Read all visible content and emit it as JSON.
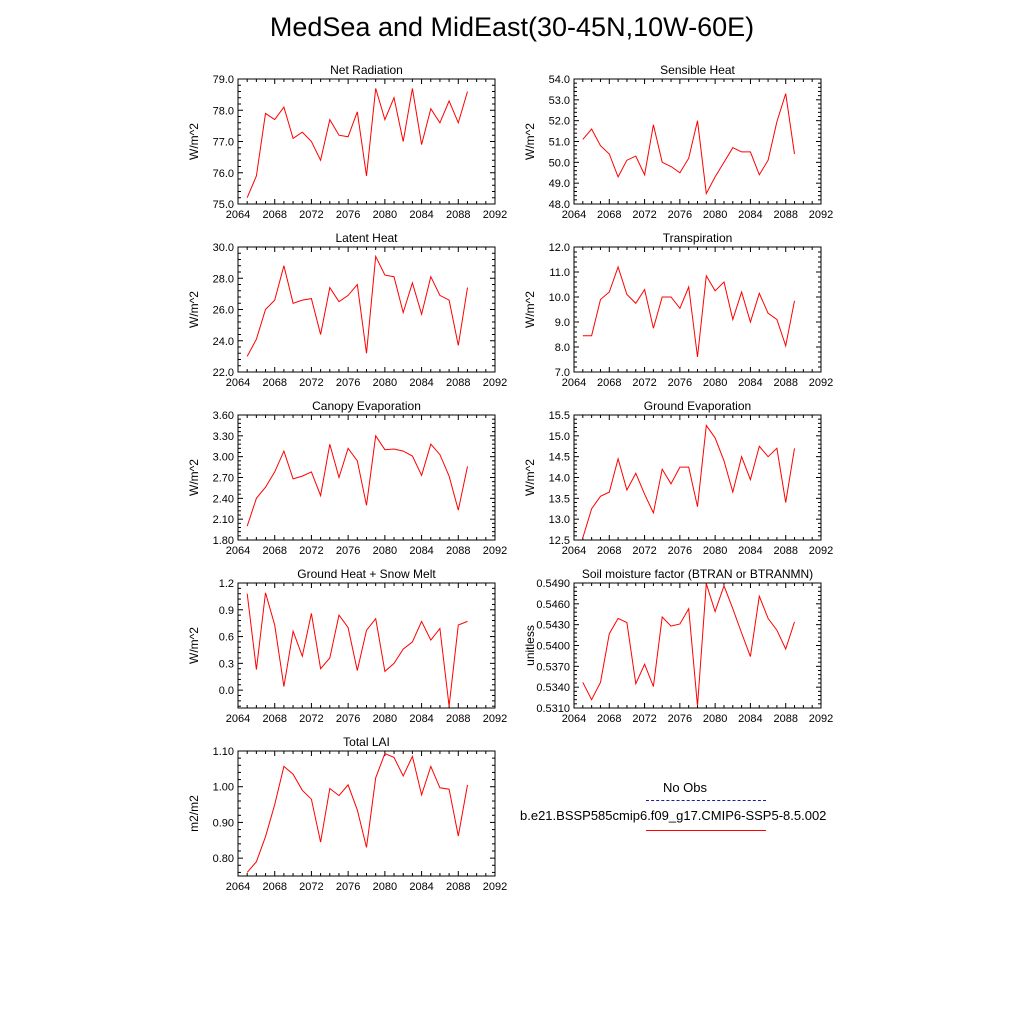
{
  "title": "MedSea and MidEast(30-45N,10W-60E)",
  "colors": {
    "series": "#ff0000",
    "obs": "#1a1ab0",
    "axis": "#000000"
  },
  "legend": {
    "obs_label": "No Obs",
    "run_label": "b.e21.BSSP585cmip6.f09_g17.CMIP6-SSP5-8.5.002"
  },
  "chart_data": [
    {
      "type": "line",
      "title": "Net Radiation",
      "ylabel": "W/m^2",
      "xlim": [
        2064,
        2092
      ],
      "ylim": [
        75.0,
        79.0
      ],
      "xticks": [
        2064,
        2068,
        2072,
        2076,
        2080,
        2084,
        2088,
        2092
      ],
      "yticks": [
        "75.0",
        "76.0",
        "77.0",
        "78.0",
        "79.0"
      ],
      "x": [
        2065,
        2066,
        2067,
        2068,
        2069,
        2070,
        2071,
        2072,
        2073,
        2074,
        2075,
        2076,
        2077,
        2078,
        2079,
        2080,
        2081,
        2082,
        2083,
        2084,
        2085,
        2086,
        2087,
        2088,
        2089
      ],
      "values": [
        75.2,
        75.9,
        77.9,
        77.7,
        78.1,
        77.1,
        77.3,
        77.0,
        76.4,
        77.7,
        77.2,
        77.15,
        77.95,
        75.9,
        78.7,
        77.7,
        78.4,
        77.0,
        78.7,
        76.9,
        78.05,
        77.6,
        78.3,
        77.6,
        78.6
      ]
    },
    {
      "type": "line",
      "title": "Sensible Heat",
      "ylabel": "W/m^2",
      "xlim": [
        2064,
        2092
      ],
      "ylim": [
        48.0,
        54.0
      ],
      "xticks": [
        2064,
        2068,
        2072,
        2076,
        2080,
        2084,
        2088,
        2092
      ],
      "yticks": [
        "48.0",
        "49.0",
        "50.0",
        "51.0",
        "52.0",
        "53.0",
        "54.0"
      ],
      "x": [
        2065,
        2066,
        2067,
        2068,
        2069,
        2070,
        2071,
        2072,
        2073,
        2074,
        2075,
        2076,
        2077,
        2078,
        2079,
        2080,
        2081,
        2082,
        2083,
        2084,
        2085,
        2086,
        2087,
        2088,
        2089
      ],
      "values": [
        51.1,
        51.6,
        50.8,
        50.4,
        49.3,
        50.1,
        50.3,
        49.4,
        51.8,
        50.0,
        49.8,
        49.5,
        50.2,
        52.0,
        48.5,
        49.3,
        50.0,
        50.7,
        50.5,
        50.5,
        49.4,
        50.1,
        51.95,
        53.3,
        50.4
      ]
    },
    {
      "type": "line",
      "title": "Latent Heat",
      "ylabel": "W/m^2",
      "xlim": [
        2064,
        2092
      ],
      "ylim": [
        22.0,
        30.0
      ],
      "xticks": [
        2064,
        2068,
        2072,
        2076,
        2080,
        2084,
        2088,
        2092
      ],
      "yticks": [
        "22.0",
        "24.0",
        "26.0",
        "28.0",
        "30.0"
      ],
      "x": [
        2065,
        2066,
        2067,
        2068,
        2069,
        2070,
        2071,
        2072,
        2073,
        2074,
        2075,
        2076,
        2077,
        2078,
        2079,
        2080,
        2081,
        2082,
        2083,
        2084,
        2085,
        2086,
        2087,
        2088,
        2089
      ],
      "values": [
        23.0,
        24.1,
        26.0,
        26.6,
        28.8,
        26.4,
        26.6,
        26.7,
        24.4,
        27.4,
        26.5,
        26.9,
        27.6,
        23.2,
        29.4,
        28.2,
        28.1,
        25.8,
        27.7,
        25.7,
        28.1,
        26.9,
        26.6,
        23.7,
        27.4
      ]
    },
    {
      "type": "line",
      "title": "Transpiration",
      "ylabel": "W/m^2",
      "xlim": [
        2064,
        2092
      ],
      "ylim": [
        7.0,
        12.0
      ],
      "xticks": [
        2064,
        2068,
        2072,
        2076,
        2080,
        2084,
        2088,
        2092
      ],
      "yticks": [
        "7.0",
        "8.0",
        "9.0",
        "10.0",
        "11.0",
        "12.0"
      ],
      "x": [
        2065,
        2066,
        2067,
        2068,
        2069,
        2070,
        2071,
        2072,
        2073,
        2074,
        2075,
        2076,
        2077,
        2078,
        2079,
        2080,
        2081,
        2082,
        2083,
        2084,
        2085,
        2086,
        2087,
        2088,
        2089
      ],
      "values": [
        8.45,
        8.45,
        9.9,
        10.2,
        11.2,
        10.1,
        9.75,
        10.3,
        8.75,
        10.0,
        10.0,
        9.55,
        10.4,
        7.6,
        10.85,
        10.25,
        10.6,
        9.1,
        10.2,
        9.0,
        10.15,
        9.35,
        9.1,
        8.05,
        9.85
      ]
    },
    {
      "type": "line",
      "title": "Canopy Evaporation",
      "ylabel": "W/m^2",
      "xlim": [
        2064,
        2092
      ],
      "ylim": [
        1.8,
        3.6
      ],
      "xticks": [
        2064,
        2068,
        2072,
        2076,
        2080,
        2084,
        2088,
        2092
      ],
      "yticks": [
        "1.80",
        "2.10",
        "2.40",
        "2.70",
        "3.00",
        "3.30",
        "3.60"
      ],
      "x": [
        2065,
        2066,
        2067,
        2068,
        2069,
        2070,
        2071,
        2072,
        2073,
        2074,
        2075,
        2076,
        2077,
        2078,
        2079,
        2080,
        2081,
        2082,
        2083,
        2084,
        2085,
        2086,
        2087,
        2088,
        2089
      ],
      "values": [
        2.0,
        2.4,
        2.56,
        2.78,
        3.08,
        2.68,
        2.72,
        2.78,
        2.44,
        3.18,
        2.7,
        3.12,
        2.94,
        2.3,
        3.3,
        3.1,
        3.11,
        3.08,
        3.01,
        2.73,
        3.18,
        3.03,
        2.72,
        2.23,
        2.86
      ]
    },
    {
      "type": "line",
      "title": "Ground Evaporation",
      "ylabel": "W/m^2",
      "xlim": [
        2064,
        2092
      ],
      "ylim": [
        12.5,
        15.5
      ],
      "xticks": [
        2064,
        2068,
        2072,
        2076,
        2080,
        2084,
        2088,
        2092
      ],
      "yticks": [
        "12.5",
        "13.0",
        "13.5",
        "14.0",
        "14.5",
        "15.0",
        "15.5"
      ],
      "x": [
        2065,
        2066,
        2067,
        2068,
        2069,
        2070,
        2071,
        2072,
        2073,
        2074,
        2075,
        2076,
        2077,
        2078,
        2079,
        2080,
        2081,
        2082,
        2083,
        2084,
        2085,
        2086,
        2087,
        2088,
        2089
      ],
      "values": [
        12.55,
        13.25,
        13.55,
        13.65,
        14.45,
        13.7,
        14.1,
        13.6,
        13.15,
        14.2,
        13.85,
        14.25,
        14.25,
        13.3,
        15.25,
        14.95,
        14.4,
        13.65,
        14.5,
        13.95,
        14.75,
        14.5,
        14.7,
        13.4,
        14.7
      ]
    },
    {
      "type": "line",
      "title": "Ground Heat + Snow Melt",
      "ylabel": "W/m^2",
      "xlim": [
        2064,
        2092
      ],
      "ylim": [
        -0.2,
        1.2
      ],
      "xticks": [
        2064,
        2068,
        2072,
        2076,
        2080,
        2084,
        2088,
        2092
      ],
      "yticks": [
        "0.0",
        "0.3",
        "0.6",
        "0.9",
        "1.2"
      ],
      "ytick_values": [
        0.0,
        0.3,
        0.6,
        0.9,
        1.2
      ],
      "x": [
        2065,
        2066,
        2067,
        2068,
        2069,
        2070,
        2071,
        2072,
        2073,
        2074,
        2075,
        2076,
        2077,
        2078,
        2079,
        2080,
        2081,
        2082,
        2083,
        2084,
        2085,
        2086,
        2087,
        2088,
        2089
      ],
      "values": [
        1.08,
        0.23,
        1.09,
        0.73,
        0.04,
        0.66,
        0.38,
        0.86,
        0.24,
        0.36,
        0.84,
        0.7,
        0.22,
        0.67,
        0.8,
        0.21,
        0.3,
        0.46,
        0.54,
        0.77,
        0.56,
        0.69,
        -0.18,
        0.73,
        0.77
      ]
    },
    {
      "type": "line",
      "title": "Soil moisture factor (BTRAN or BTRANMN)",
      "ylabel": "unitless",
      "xlim": [
        2064,
        2092
      ],
      "ylim": [
        0.531,
        0.549
      ],
      "xticks": [
        2064,
        2068,
        2072,
        2076,
        2080,
        2084,
        2088,
        2092
      ],
      "yticks": [
        "0.5310",
        "0.5340",
        "0.5370",
        "0.5400",
        "0.5430",
        "0.5460",
        "0.5490"
      ],
      "x": [
        2065,
        2066,
        2067,
        2068,
        2069,
        2070,
        2071,
        2072,
        2073,
        2074,
        2075,
        2076,
        2077,
        2078,
        2079,
        2080,
        2081,
        2082,
        2083,
        2084,
        2085,
        2086,
        2087,
        2088,
        2089
      ],
      "values": [
        0.5347,
        0.5322,
        0.5347,
        0.5417,
        0.5439,
        0.5433,
        0.5345,
        0.5373,
        0.5341,
        0.5441,
        0.5428,
        0.5431,
        0.5453,
        0.5313,
        0.5489,
        0.5449,
        0.5486,
        0.5453,
        0.5418,
        0.5384,
        0.5471,
        0.5439,
        0.5422,
        0.5395,
        0.5434
      ]
    },
    {
      "type": "line",
      "title": "Total LAI",
      "ylabel": "m2/m2",
      "xlim": [
        2064,
        2092
      ],
      "ylim": [
        0.75,
        1.1
      ],
      "xticks": [
        2064,
        2068,
        2072,
        2076,
        2080,
        2084,
        2088,
        2092
      ],
      "yticks": [
        "0.80",
        "0.90",
        "1.00",
        "1.10"
      ],
      "ytick_values": [
        0.8,
        0.9,
        1.0,
        1.1
      ],
      "x": [
        2065,
        2066,
        2067,
        2068,
        2069,
        2070,
        2071,
        2072,
        2073,
        2074,
        2075,
        2076,
        2077,
        2078,
        2079,
        2080,
        2081,
        2082,
        2083,
        2084,
        2085,
        2086,
        2087,
        2088,
        2089
      ],
      "values": [
        0.76,
        0.79,
        0.86,
        0.95,
        1.057,
        1.035,
        0.99,
        0.965,
        0.845,
        0.995,
        0.975,
        1.005,
        0.935,
        0.83,
        1.025,
        1.093,
        1.082,
        1.03,
        1.085,
        0.977,
        1.057,
        0.997,
        0.993,
        0.862,
        1.005
      ]
    }
  ]
}
